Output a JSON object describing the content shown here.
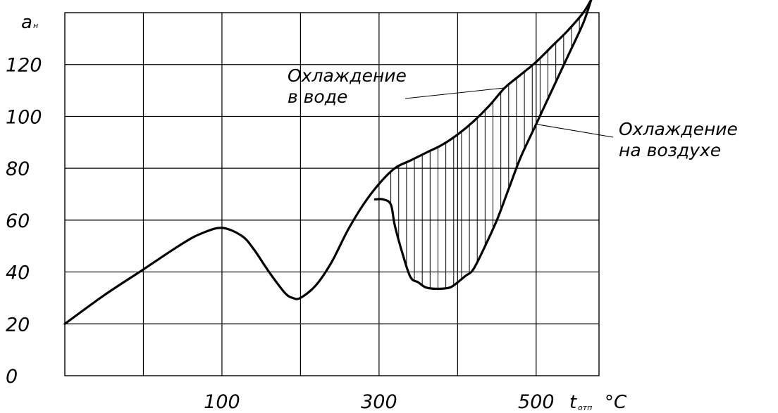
{
  "chart_data": {
    "type": "line",
    "y_axis": {
      "symbol_main": "a",
      "symbol_sub": "н",
      "ticks": [
        0,
        20,
        40,
        60,
        80,
        100,
        120
      ],
      "ylim": [
        0,
        140
      ]
    },
    "x_axis": {
      "symbol_main": "t",
      "symbol_sub": "отп",
      "unit": "°C",
      "tick_labels": [
        {
          "value": 200,
          "label": "100"
        },
        {
          "value": 400,
          "label": "300"
        },
        {
          "value": 600,
          "label": "500"
        }
      ],
      "xlim": [
        0,
        680
      ],
      "gridlines": [
        100,
        200,
        300,
        400,
        500,
        600
      ]
    },
    "grid": true,
    "series": [
      {
        "name": "Охлаждение в воде",
        "x": [
          0,
          50,
          100,
          150,
          175,
          200,
          225,
          240,
          260,
          280,
          290,
          300,
          320,
          340,
          360,
          380,
          400,
          420,
          440,
          460,
          480,
          500,
          520,
          540,
          560,
          580,
          600,
          620,
          640,
          660,
          670
        ],
        "y": [
          20,
          31,
          41,
          51,
          55,
          57,
          54,
          49,
          40,
          32,
          30,
          30,
          35,
          44,
          56,
          66,
          74,
          80,
          83,
          86,
          89,
          93,
          98,
          104,
          111,
          116,
          121,
          127,
          133,
          140,
          145
        ]
      },
      {
        "name": "Охлаждение на воздухе",
        "x": [
          395,
          405,
          415,
          420,
          430,
          440,
          450,
          460,
          475,
          490,
          500,
          510,
          520,
          535,
          550,
          565,
          580,
          600,
          620,
          640,
          660,
          670
        ],
        "y": [
          68,
          68,
          66,
          58,
          47,
          38,
          36,
          34,
          33.5,
          34,
          36,
          38.5,
          41,
          50,
          60,
          72,
          84,
          97,
          110,
          123,
          136,
          145
        ]
      }
    ],
    "hatched_between": {
      "from": 395,
      "to": 660,
      "step": 20
    },
    "annotations": [
      {
        "lines": [
          "Охлаждение",
          "в воде"
        ],
        "target_series": "Охлаждение в воде",
        "target_x": 560
      },
      {
        "lines": [
          "Охлаждение",
          "на воздухе"
        ],
        "target_series": "Охлаждение на воздухе",
        "target_x": 600
      }
    ]
  }
}
